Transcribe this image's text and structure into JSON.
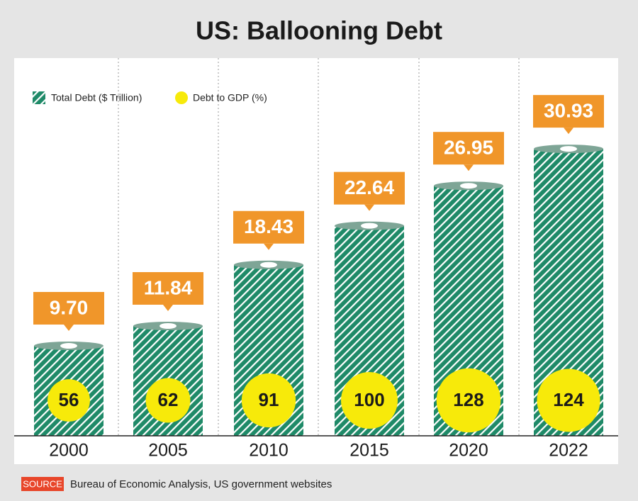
{
  "chart_data": {
    "type": "bar",
    "title": "US: Ballooning Debt",
    "categories": [
      "2000",
      "2005",
      "2010",
      "2015",
      "2020",
      "2022"
    ],
    "series": [
      {
        "name": "Total Debt ($ Trillion)",
        "color": "#1f8a68",
        "values": [
          9.7,
          11.84,
          18.43,
          22.64,
          26.95,
          30.93
        ],
        "value_labels": [
          "9.70",
          "11.84",
          "18.43",
          "22.64",
          "26.95",
          "30.93"
        ],
        "label_color": "#f0962a"
      },
      {
        "name": "Debt to GDP (%)",
        "color": "#f7ea0a",
        "values": [
          56,
          62,
          91,
          100,
          128,
          124
        ]
      }
    ],
    "ylim": [
      0,
      33
    ],
    "source_label": "SOURCE",
    "source": "Bureau of Economic Analysis, US government websites"
  }
}
